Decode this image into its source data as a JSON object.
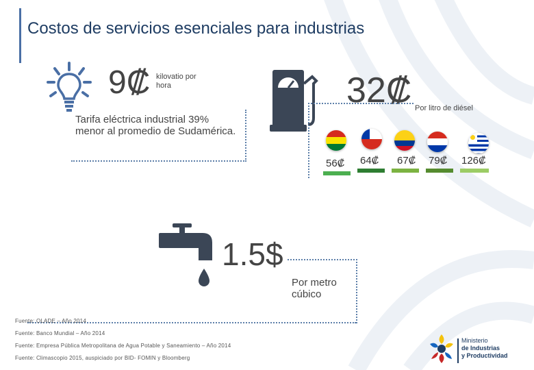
{
  "title": "Costos de servicios esenciales para industrias",
  "electricity": {
    "icon": "lightbulb-icon",
    "price": "9₡",
    "unit": "kilovatio por hora",
    "description": "Tarifa eléctrica industrial 39% menor al promedio de Sudamérica."
  },
  "diesel": {
    "icon": "fuel-pump-icon",
    "price": "32₡",
    "unit": "Por litro de diésel",
    "comparisons": [
      {
        "country": "Bolivia",
        "icon": "bolivia-flag-icon",
        "value": "56₡",
        "color": "#4caf50"
      },
      {
        "country": "Chile",
        "icon": "chile-flag-icon",
        "value": "64₡",
        "color": "#2e7d32"
      },
      {
        "country": "Colombia",
        "icon": "colombia-flag-icon",
        "value": "67₡",
        "color": "#7cb342"
      },
      {
        "country": "Paraguay",
        "icon": "paraguay-flag-icon",
        "value": "79₡",
        "color": "#558b2f"
      },
      {
        "country": "Uruguay",
        "icon": "uruguay-flag-icon",
        "value": "126₡",
        "color": "#9ccc65"
      }
    ]
  },
  "water": {
    "icon": "water-tap-icon",
    "price": "1.5$",
    "unit": "Por metro cúbico"
  },
  "sources": [
    "Fuente: OLADE – Año 2014",
    "Fuente: Banco Mundial – Año 2014",
    "Fuente: Empresa Pública Metropolitana de Agua Potable y Saneamiento – Año 2014",
    "Fuente: Climascopio 2015, auspiciado por BID- FOMIN y Bloomberg"
  ],
  "logo": {
    "line1": "Ministerio",
    "line2": "de Industrias",
    "line3": "y Productividad"
  }
}
